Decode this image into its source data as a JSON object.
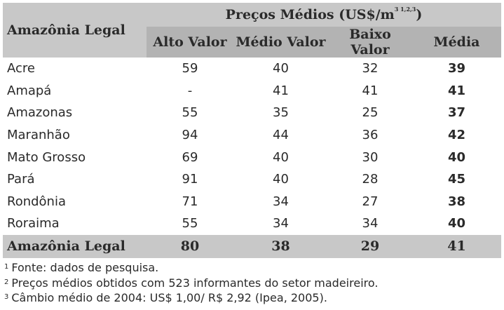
{
  "header": {
    "region_label": "Amazônia Legal",
    "group_label": "Preços Médios (US$/m",
    "group_sup": "3 1,2,3",
    "group_close": ")",
    "columns": [
      "Alto Valor",
      "Médio Valor",
      "Baixo Valor",
      "Média"
    ]
  },
  "rows": [
    {
      "name": "Acre",
      "alto": "59",
      "medio": "40",
      "baixo": "32",
      "media": "39"
    },
    {
      "name": "Amapá",
      "alto": "-",
      "medio": "41",
      "baixo": "41",
      "media": "41"
    },
    {
      "name": "Amazonas",
      "alto": "55",
      "medio": "35",
      "baixo": "25",
      "media": "37"
    },
    {
      "name": "Maranhão",
      "alto": "94",
      "medio": "44",
      "baixo": "36",
      "media": "42"
    },
    {
      "name": "Mato Grosso",
      "alto": "69",
      "medio": "40",
      "baixo": "30",
      "media": "40"
    },
    {
      "name": "Pará",
      "alto": "91",
      "medio": "40",
      "baixo": "28",
      "media": "45"
    },
    {
      "name": "Rondônia",
      "alto": "71",
      "medio": "34",
      "baixo": "27",
      "media": "38"
    },
    {
      "name": "Roraima",
      "alto": "55",
      "medio": "34",
      "baixo": "34",
      "media": "40"
    }
  ],
  "total": {
    "name": "Amazônia Legal",
    "alto": "80",
    "medio": "38",
    "baixo": "29",
    "media": "41"
  },
  "notes": [
    {
      "num": "1",
      "text": "Fonte: dados de pesquisa."
    },
    {
      "num": "2",
      "text": "Preços médios obtidos com 523 informantes do setor madeireiro."
    },
    {
      "num": "3",
      "text": "Câmbio médio de 2004: US$ 1,00/ R$ 2,92 (Ipea, 2005)."
    }
  ]
}
